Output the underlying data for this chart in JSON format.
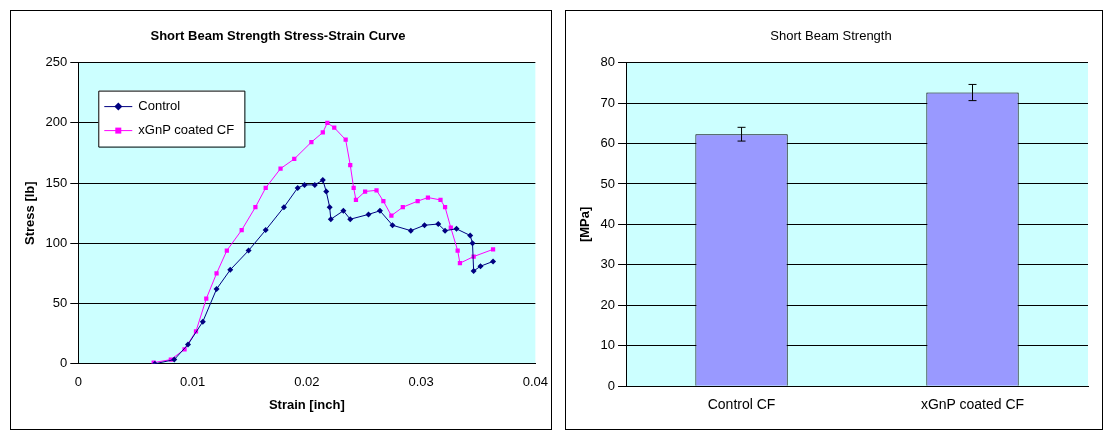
{
  "chart_data": [
    {
      "type": "line",
      "title": "Short Beam Strength Stress-Strain Curve",
      "xlabel": "Strain [inch]",
      "ylabel": "Stress [lb]",
      "xlim": [
        0,
        0.04
      ],
      "xticks": [
        0,
        0.01,
        0.02,
        0.03,
        0.04
      ],
      "ylim": [
        0,
        250
      ],
      "yticks": [
        0,
        50,
        100,
        150,
        200,
        250
      ],
      "grid": "y",
      "legend": "top left",
      "series": [
        {
          "name": "Control",
          "color": "#000080",
          "marker": "diamond",
          "x": [
            0.0067,
            0.0084,
            0.0096,
            0.0109,
            0.0121,
            0.0133,
            0.0149,
            0.0164,
            0.018,
            0.0192,
            0.0198,
            0.0207,
            0.0214,
            0.0217,
            0.022,
            0.0221,
            0.0232,
            0.0238,
            0.0254,
            0.0264,
            0.0275,
            0.0291,
            0.0303,
            0.0315,
            0.0321,
            0.0331,
            0.0343,
            0.0345,
            0.0346,
            0.0352,
            0.0363
          ],
          "values": [
            0,
            3.5,
            16,
            35,
            62,
            78,
            94,
            111,
            130,
            146,
            148.5,
            148.5,
            152.5,
            143,
            130,
            120,
            127,
            120,
            124,
            127,
            115,
            110.5,
            115,
            116,
            110.5,
            112,
            106.5,
            100,
            77,
            81,
            85
          ]
        },
        {
          "name": "xGnP coated CF",
          "color": "#ff00ff",
          "marker": "square",
          "x": [
            0.0066,
            0.0081,
            0.0093,
            0.0103,
            0.0112,
            0.0121,
            0.013,
            0.0143,
            0.0155,
            0.0164,
            0.0177,
            0.0189,
            0.0204,
            0.0214,
            0.0218,
            0.0224,
            0.0234,
            0.0238,
            0.0241,
            0.0243,
            0.0251,
            0.0261,
            0.0267,
            0.0274,
            0.0284,
            0.0297,
            0.0306,
            0.0317,
            0.0321,
            0.0326,
            0.0332,
            0.0334,
            0.0346,
            0.0363
          ],
          "values": [
            1,
            3.5,
            12,
            27,
            54,
            75,
            94,
            111,
            130,
            146,
            162,
            170,
            184,
            192,
            200,
            196,
            186,
            165,
            146,
            136,
            143,
            144,
            135,
            123,
            130,
            135,
            138,
            136,
            130,
            113,
            94,
            83.5,
            89,
            95
          ]
        }
      ]
    },
    {
      "type": "bar",
      "title": "Short Beam Strength",
      "ylabel": "[MPa]",
      "categories": [
        "Control CF",
        "xGnP coated CF"
      ],
      "values": [
        62.3,
        72.6
      ],
      "errors": [
        1.7,
        2.0
      ],
      "color": "#9999ff",
      "ylim": [
        0,
        80
      ],
      "yticks": [
        0,
        10,
        20,
        30,
        40,
        50,
        60,
        70,
        80
      ],
      "grid": "y"
    }
  ]
}
